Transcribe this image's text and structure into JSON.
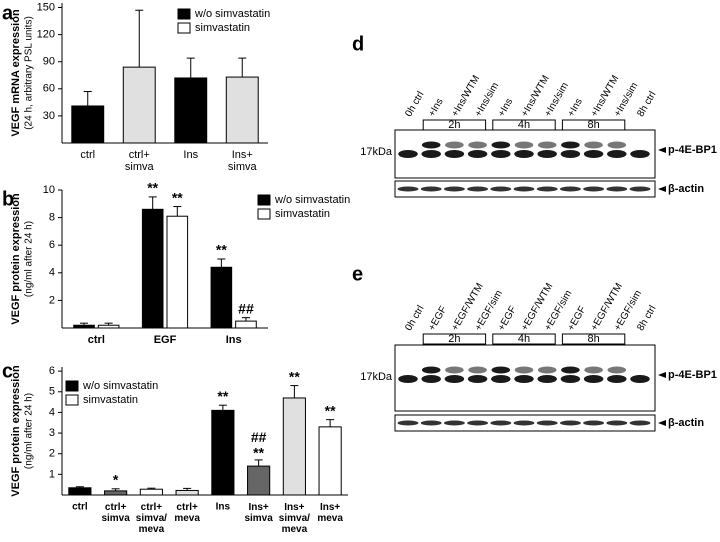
{
  "chart_data": [
    {
      "type": "bar",
      "panel": "a",
      "ylabel": [
        "VEGF mRNA expression",
        "(24 h, arbitrary PSL units)"
      ],
      "categories": [
        "ctrl",
        "ctrl+\nsimva",
        "Ins",
        "Ins+\nsimva"
      ],
      "values": [
        41,
        84,
        72,
        73
      ],
      "errors": [
        16,
        63,
        22,
        21
      ],
      "colors": [
        "#000000",
        "#e0e0e0",
        "#000000",
        "#e0e0e0"
      ],
      "legend": [
        {
          "name": "w/o simvastatin",
          "color": "#000000"
        },
        {
          "name": "simvastatin",
          "color": "#ffffff"
        }
      ],
      "ylim": [
        0,
        155
      ],
      "yticks": [
        30,
        60,
        90,
        120,
        150
      ]
    },
    {
      "type": "bar",
      "panel": "b",
      "ylabel": [
        "VEGF protein expression",
        "(ng/ml after 24 h)"
      ],
      "categories": [
        "ctrl",
        "EGF",
        "Ins"
      ],
      "series": [
        {
          "name": "w/o simvastatin",
          "color": "#000000",
          "values": [
            0.2,
            8.6,
            4.4
          ],
          "errors": [
            0.15,
            0.9,
            0.6
          ],
          "annotations": [
            null,
            "**",
            "**"
          ]
        },
        {
          "name": "simvastatin",
          "color": "#ffffff",
          "values": [
            0.2,
            8.1,
            0.5
          ],
          "errors": [
            0.15,
            0.7,
            0.25
          ],
          "annotations": [
            null,
            "**",
            "##"
          ]
        }
      ],
      "ylim": [
        0,
        10
      ],
      "yticks": [
        2,
        4,
        6,
        8,
        10
      ]
    },
    {
      "type": "bar",
      "panel": "c",
      "ylabel": [
        "VEGF protein expression",
        "(ng/ml after 24 h)"
      ],
      "categories": [
        "ctrl",
        "ctrl+\nsimva",
        "ctrl+\nsimva/\nmeva",
        "ctrl+\nmeva",
        "Ins",
        "Ins+\nsimva",
        "Ins+\nsimva/\nmeva",
        "Ins+\nmeva"
      ],
      "values": [
        0.35,
        0.2,
        0.28,
        0.22,
        4.1,
        1.4,
        4.7,
        3.3
      ],
      "errors": [
        0.05,
        0.1,
        0.05,
        0.1,
        0.25,
        0.3,
        0.6,
        0.35
      ],
      "annotations": [
        null,
        "*",
        null,
        null,
        "**",
        "##\n**",
        "**",
        "**"
      ],
      "colors": [
        "#000000",
        "#666666",
        "#ffffff",
        "#e0e0e0",
        "#000000",
        "#666666",
        "#e0e0e0",
        "#ffffff"
      ],
      "legend": [
        {
          "name": "w/o simvastatin",
          "color": "#000000"
        },
        {
          "name": "simvastatin",
          "color": "#ffffff"
        }
      ],
      "ylim": [
        0,
        6.2
      ],
      "yticks": [
        1,
        2,
        3,
        4,
        5,
        6
      ]
    }
  ],
  "blots": [
    {
      "panel": "d",
      "lanes": [
        "0h ctrl",
        "+Ins",
        "+Ins/WTM",
        "+Ins/sim",
        "+Ins",
        "+Ins/WTM",
        "+Ins/sim",
        "+Ins",
        "+Ins/WTM",
        "+Ins/sim",
        "8h ctrl"
      ],
      "groups": [
        "2h",
        "4h",
        "8h"
      ],
      "marker": "17kDa",
      "target": "p-4E-BP1",
      "control": "β-actin"
    },
    {
      "panel": "e",
      "lanes": [
        "0h ctrl",
        "+EGF",
        "+EGF/WTM",
        "+EGF/sim",
        "+EGF",
        "+EGF/WTM",
        "+EGF/sim",
        "+EGF",
        "+EGF/WTM",
        "+EGF/sim",
        "8h ctrl"
      ],
      "groups": [
        "2h",
        "4h",
        "8h"
      ],
      "marker": "17kDa",
      "target": "p-4E-BP1",
      "control": "β-actin"
    }
  ]
}
